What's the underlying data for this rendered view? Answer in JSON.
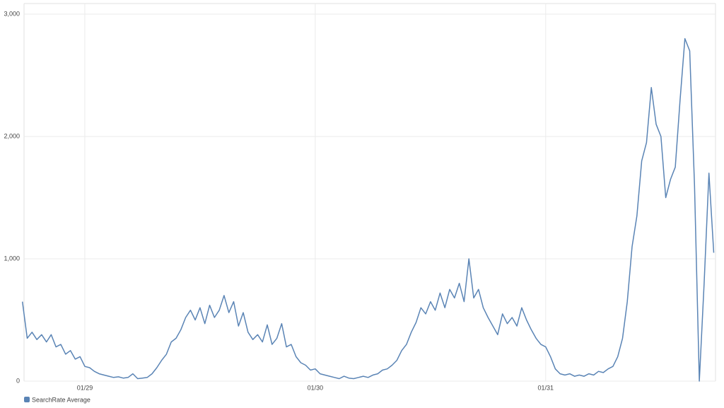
{
  "chart_data": {
    "type": "line",
    "categories": [
      null,
      null,
      null,
      null,
      null,
      null,
      null,
      null,
      null,
      null,
      null,
      null,
      null,
      "01/29",
      null,
      null,
      null,
      null,
      null,
      null,
      null,
      null,
      null,
      null,
      null,
      null,
      null,
      null,
      null,
      null,
      null,
      null,
      null,
      null,
      null,
      null,
      null,
      null,
      null,
      null,
      null,
      null,
      null,
      null,
      null,
      null,
      null,
      null,
      null,
      null,
      null,
      null,
      null,
      null,
      null,
      null,
      null,
      null,
      null,
      null,
      null,
      "01/30",
      null,
      null,
      null,
      null,
      null,
      null,
      null,
      null,
      null,
      null,
      null,
      null,
      null,
      null,
      null,
      null,
      null,
      null,
      null,
      null,
      null,
      null,
      null,
      null,
      null,
      null,
      null,
      null,
      null,
      null,
      null,
      null,
      null,
      null,
      null,
      null,
      null,
      null,
      null,
      null,
      null,
      null,
      null,
      null,
      null,
      null,
      null,
      "01/31",
      null,
      null,
      null,
      null,
      null,
      null,
      null,
      null,
      null,
      null,
      null,
      null,
      null,
      null,
      null,
      null,
      null,
      null,
      null,
      null,
      null,
      null,
      null,
      null,
      null,
      null,
      null,
      null,
      null,
      null,
      null,
      null,
      null,
      null,
      null
    ],
    "series": [
      {
        "name": "SearchRate Average",
        "color": "#5a84b5",
        "values": [
          650,
          350,
          400,
          340,
          380,
          320,
          380,
          280,
          300,
          220,
          250,
          180,
          200,
          120,
          110,
          80,
          60,
          50,
          40,
          30,
          35,
          25,
          30,
          60,
          20,
          25,
          30,
          60,
          110,
          170,
          220,
          320,
          350,
          420,
          520,
          580,
          500,
          600,
          470,
          620,
          520,
          580,
          700,
          560,
          650,
          450,
          560,
          400,
          340,
          380,
          320,
          460,
          300,
          350,
          470,
          280,
          300,
          200,
          150,
          130,
          90,
          100,
          60,
          50,
          40,
          30,
          20,
          40,
          25,
          20,
          30,
          40,
          30,
          50,
          60,
          90,
          100,
          130,
          170,
          250,
          300,
          400,
          480,
          600,
          550,
          650,
          580,
          720,
          600,
          750,
          680,
          800,
          650,
          1000,
          680,
          750,
          600,
          520,
          450,
          380,
          550,
          470,
          520,
          450,
          600,
          500,
          420,
          350,
          300,
          280,
          200,
          100,
          60,
          50,
          60,
          40,
          50,
          40,
          60,
          50,
          80,
          70,
          100,
          120,
          200,
          350,
          650,
          1100,
          1350,
          1800,
          1950,
          2400,
          2100,
          2000,
          1500,
          1650,
          1750,
          2300,
          2800,
          2700,
          1600,
          0,
          800,
          1700,
          1050
        ]
      }
    ],
    "ylim": [
      0,
      3000
    ],
    "yticks": [
      0,
      {
        "value": 1000,
        "label": "1,000"
      },
      {
        "value": 2000,
        "label": "2,000"
      },
      {
        "value": 3000,
        "label": "3,000"
      }
    ],
    "grid": true
  }
}
